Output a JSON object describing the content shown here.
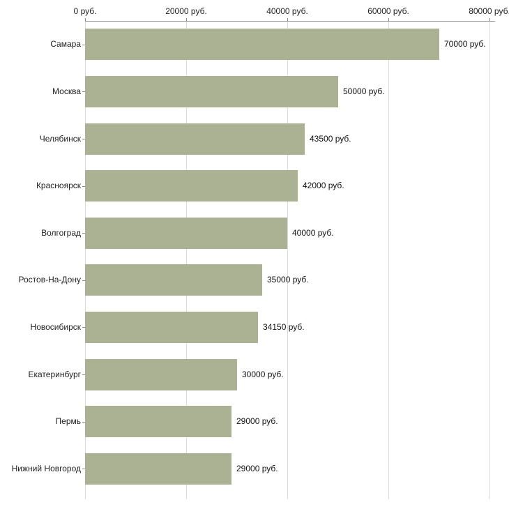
{
  "chart_data": {
    "type": "bar",
    "orientation": "horizontal",
    "title": "",
    "categories": [
      "Самара",
      "Москва",
      "Челябинск",
      "Красноярск",
      "Волгоград",
      "Ростов-На-Дону",
      "Новосибирск",
      "Екатеринбург",
      "Пермь",
      "Нижний Новгород"
    ],
    "values": [
      70000,
      50000,
      43500,
      42000,
      40000,
      35000,
      34150,
      30000,
      29000,
      29000
    ],
    "value_labels": [
      "70000 руб.",
      "50000 руб.",
      "43500 руб.",
      "42000 руб.",
      "40000 руб.",
      "35000 руб.",
      "34150 руб.",
      "30000 руб.",
      "29000 руб.",
      "29000 руб."
    ],
    "x_axis": {
      "position": "top",
      "max": 80000,
      "ticks": [
        0,
        20000,
        40000,
        60000,
        80000
      ],
      "tick_labels": [
        "0 руб.",
        "20000 руб.",
        "40000 руб.",
        "60000 руб.",
        "80000 руб."
      ]
    },
    "grid": true,
    "legend": "none",
    "bar_color": "#abb294",
    "background": "#ffffff"
  }
}
